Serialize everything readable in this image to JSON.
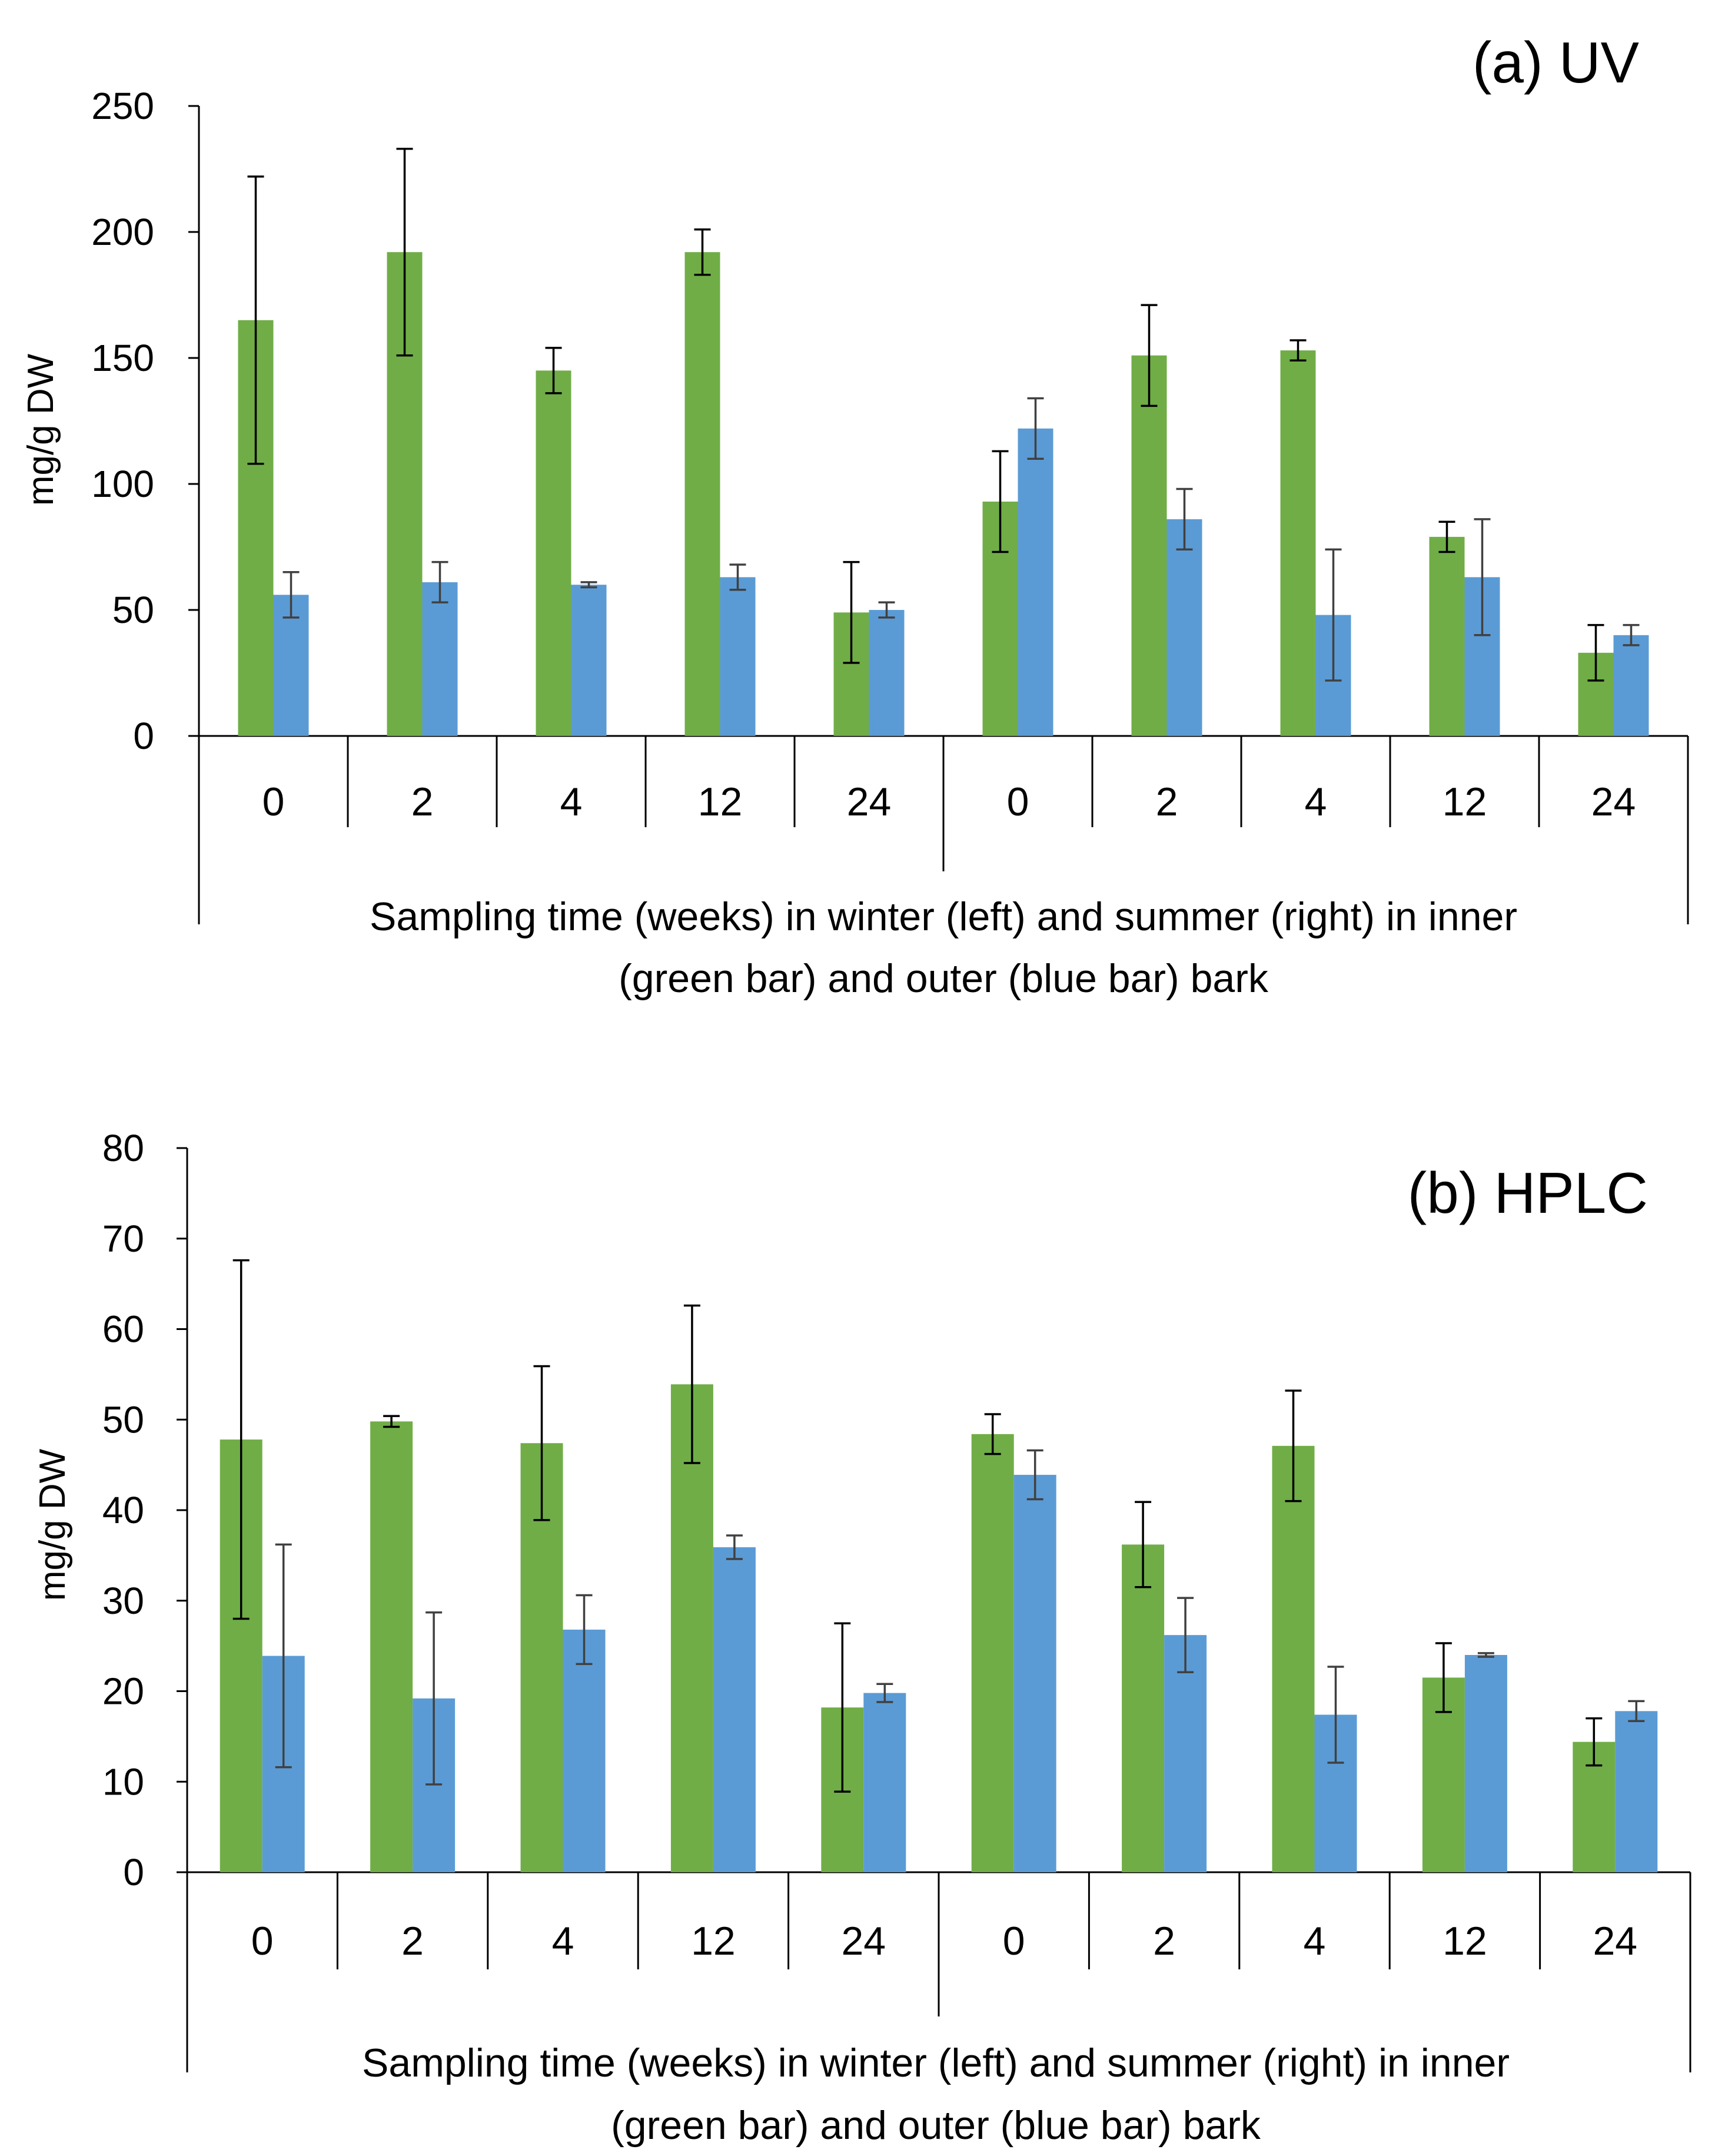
{
  "colors": {
    "inner": "#70AD47",
    "outer": "#5B9BD5",
    "axis": "#000000",
    "errbar_inner": "#000000",
    "errbar_outer": "#404040"
  },
  "chart_data": [
    {
      "type": "bar",
      "title": "(a) UV",
      "ylabel": "mg/g DW",
      "xlabel_lines": [
        "Sampling time (weeks) in winter (left) and summer (right) in inner",
        "(green bar) and outer (blue bar) bark"
      ],
      "categories": [
        "0",
        "2",
        "4",
        "12",
        "24",
        "0",
        "2",
        "4",
        "12",
        "24"
      ],
      "groups": [
        "winter",
        "summer"
      ],
      "ylim": [
        0,
        250
      ],
      "yticks": [
        "0",
        "50",
        "100",
        "150",
        "200",
        "250"
      ],
      "series": [
        {
          "name": "inner bark",
          "color": "#70AD47",
          "values": [
            165,
            192,
            145,
            192,
            49,
            93,
            151,
            153,
            79,
            33
          ],
          "errors": [
            57,
            41,
            9,
            9,
            20,
            20,
            20,
            4,
            6,
            11
          ]
        },
        {
          "name": "outer bark",
          "color": "#5B9BD5",
          "values": [
            56,
            61,
            60,
            63,
            50,
            122,
            86,
            48,
            63,
            40
          ],
          "errors": [
            9,
            8,
            1,
            5,
            3,
            12,
            12,
            26,
            23,
            4
          ]
        }
      ]
    },
    {
      "type": "bar",
      "title": "(b) HPLC",
      "ylabel": "mg/g DW",
      "xlabel_lines": [
        "Sampling time (weeks) in winter (left) and summer (right) in inner",
        "(green bar) and outer (blue bar) bark"
      ],
      "categories": [
        "0",
        "2",
        "4",
        "12",
        "24",
        "0",
        "2",
        "4",
        "12",
        "24"
      ],
      "groups": [
        "winter",
        "summer"
      ],
      "ylim": [
        0,
        80
      ],
      "yticks": [
        "0",
        "10",
        "20",
        "30",
        "40",
        "50",
        "60",
        "70",
        "80"
      ],
      "series": [
        {
          "name": "inner bark",
          "color": "#70AD47",
          "values": [
            47.8,
            49.8,
            47.4,
            53.9,
            18.2,
            48.4,
            36.2,
            47.1,
            21.5,
            14.4
          ],
          "errors": [
            19.8,
            0.6,
            8.5,
            8.7,
            9.3,
            2.2,
            4.7,
            6.1,
            3.8,
            2.6
          ]
        },
        {
          "name": "outer bark",
          "color": "#5B9BD5",
          "values": [
            23.9,
            19.2,
            26.8,
            35.9,
            19.8,
            43.9,
            26.2,
            17.4,
            24.0,
            17.8
          ],
          "errors": [
            12.3,
            9.5,
            3.8,
            1.3,
            1.0,
            2.7,
            4.1,
            5.3,
            0.2,
            1.1
          ]
        }
      ]
    }
  ]
}
